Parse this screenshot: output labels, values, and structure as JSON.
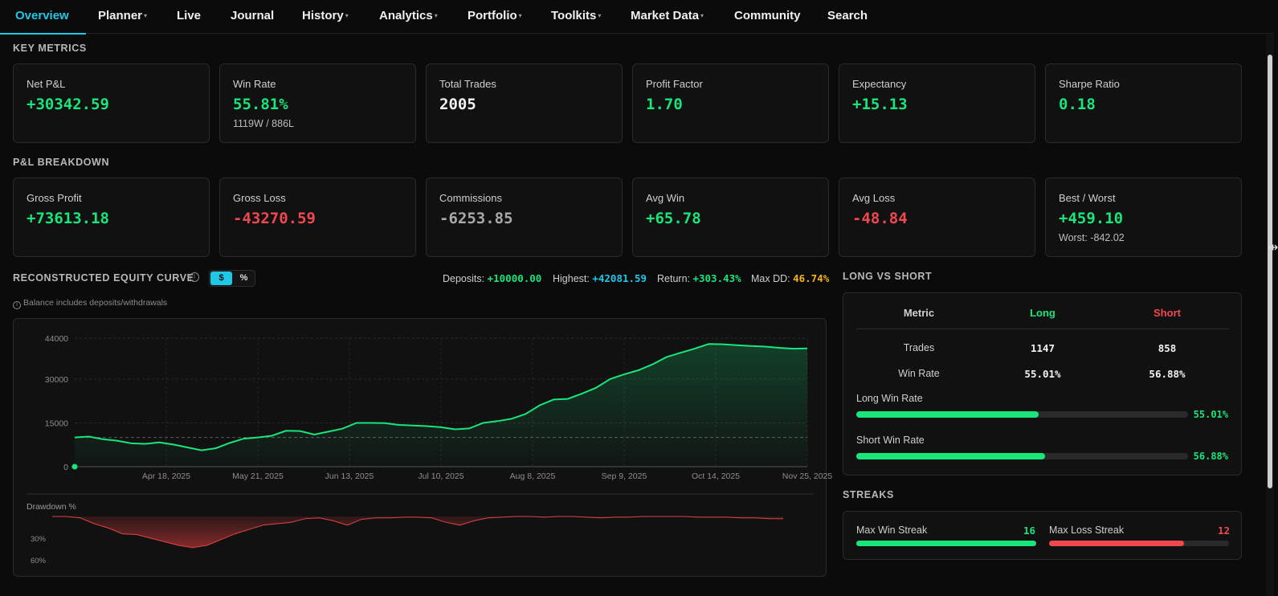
{
  "nav": {
    "items": [
      {
        "label": "Overview",
        "dropdown": false
      },
      {
        "label": "Planner",
        "dropdown": true
      },
      {
        "label": "Live",
        "dropdown": false
      },
      {
        "label": "Journal",
        "dropdown": false
      },
      {
        "label": "History",
        "dropdown": true
      },
      {
        "label": "Analytics",
        "dropdown": true
      },
      {
        "label": "Portfolio",
        "dropdown": true
      },
      {
        "label": "Toolkits",
        "dropdown": true
      },
      {
        "label": "Market Data",
        "dropdown": true
      },
      {
        "label": "Community",
        "dropdown": false
      },
      {
        "label": "Search",
        "dropdown": false
      }
    ],
    "caret": "▾"
  },
  "key_metrics": {
    "title": "KEY METRICS",
    "cards": [
      {
        "label": "Net P&L",
        "value": "+30342.59",
        "sub": ""
      },
      {
        "label": "Win Rate",
        "value": "55.81%",
        "sub": "1119W / 886L"
      },
      {
        "label": "Total Trades",
        "value": "2005",
        "sub": ""
      },
      {
        "label": "Profit Factor",
        "value": "1.70",
        "sub": ""
      },
      {
        "label": "Expectancy",
        "value": "+15.13",
        "sub": ""
      },
      {
        "label": "Sharpe Ratio",
        "value": "0.18",
        "sub": ""
      }
    ]
  },
  "pnl_breakdown": {
    "title": "P&L BREAKDOWN",
    "cards": [
      {
        "label": "Gross Profit",
        "value": "+73613.18",
        "sub": ""
      },
      {
        "label": "Gross Loss",
        "value": "-43270.59",
        "sub": ""
      },
      {
        "label": "Commissions",
        "value": "-6253.85",
        "sub": ""
      },
      {
        "label": "Avg Win",
        "value": "+65.78",
        "sub": ""
      },
      {
        "label": "Avg Loss",
        "value": "-48.84",
        "sub": ""
      },
      {
        "label": "Best / Worst",
        "value": "+459.10",
        "sub": "Worst: -842.02"
      }
    ]
  },
  "equity": {
    "title": "RECONSTRUCTED EQUITY CURVE",
    "info_icon": "i",
    "toggle": {
      "dollar": "$",
      "percent": "%"
    },
    "stats": {
      "deposits_label": "Deposits:",
      "deposits": "+10000.00",
      "highest_label": "Highest:",
      "highest": "+42081.59",
      "return_label": "Return:",
      "return": "+303.43%",
      "maxdd_label": "Max DD:",
      "maxdd": "46.74%"
    },
    "note": "Balance includes deposits/withdrawals",
    "drawdown_label": "Drawdown %"
  },
  "chart_data": [
    {
      "type": "area",
      "y_ticks": [
        "44000",
        "30000",
        "15000",
        "0"
      ],
      "ylim": [
        0,
        44000
      ],
      "x_ticks": [
        "Apr 18, 2025",
        "May 21, 2025",
        "Jun 13, 2025",
        "Jul 10, 2025",
        "Aug 8, 2025",
        "Sep 9, 2025",
        "Oct 14, 2025",
        "Nov 25, 2025"
      ],
      "baseline": 10000,
      "grid": true,
      "series": [
        {
          "values": [
            10000,
            10300,
            9400,
            8900,
            8000,
            7800,
            8300,
            7600,
            6600,
            5600,
            6300,
            8100,
            9600,
            10000,
            10600,
            12300,
            12200,
            11000,
            12000,
            13000,
            15000,
            15000,
            14900,
            14300,
            14100,
            13900,
            13500,
            12800,
            13100,
            15000,
            15600,
            16400,
            18000,
            21000,
            23000,
            23200,
            25000,
            27000,
            30000,
            31600,
            33000,
            35000,
            37500,
            39000,
            40400,
            42000,
            41900,
            41600,
            41300,
            41100,
            40700,
            40400,
            40500
          ]
        }
      ]
    },
    {
      "type": "area",
      "y_ticks": [
        "30%",
        "60%"
      ],
      "ylim": [
        0,
        60
      ],
      "series": [
        {
          "values": [
            0,
            0,
            2,
            10,
            16,
            24,
            25,
            30,
            35,
            40,
            43,
            40,
            32,
            24,
            18,
            12,
            10,
            8,
            3,
            2,
            6,
            12,
            4,
            2,
            2,
            1,
            1,
            2,
            8,
            12,
            6,
            2,
            1,
            0,
            0,
            1,
            0,
            0,
            1,
            2,
            1,
            1,
            0,
            0,
            0,
            0,
            1,
            1,
            1,
            2,
            2,
            3,
            3
          ]
        }
      ]
    }
  ],
  "long_short": {
    "title": "LONG VS SHORT",
    "headers": {
      "metric": "Metric",
      "long": "Long",
      "short": "Short"
    },
    "rows": [
      {
        "metric": "Trades",
        "long": "1147",
        "short": "858"
      },
      {
        "metric": "Win Rate",
        "long": "55.01%",
        "short": "56.88%"
      }
    ],
    "bars": [
      {
        "label": "Long Win Rate",
        "pct_text": "55.01%",
        "fraction": 0.5501
      },
      {
        "label": "Short Win Rate",
        "pct_text": "56.88%",
        "fraction": 0.5688
      }
    ],
    "colors": {
      "long": "#19e57a",
      "short": "#f0484f"
    }
  },
  "streaks": {
    "title": "STREAKS",
    "win": {
      "label": "Max Win Streak",
      "value": "16",
      "fraction": 1.0
    },
    "loss": {
      "label": "Max Loss Streak",
      "value": "12",
      "fraction": 0.75
    }
  }
}
